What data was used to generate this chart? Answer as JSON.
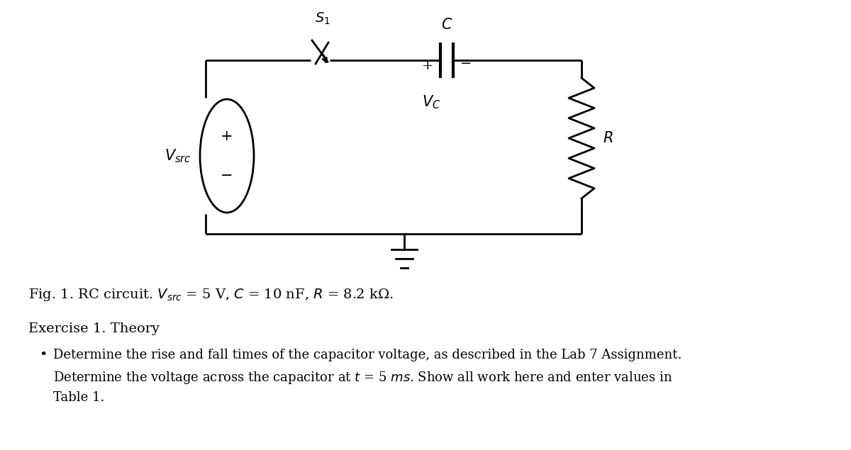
{
  "bg_color": "#ffffff",
  "fig_width": 12.0,
  "fig_height": 6.35,
  "dpi": 100,
  "lw": 2.0,
  "color": "#000000",
  "fig_caption": "Fig. 1. RC circuit. $V_{src}$ = 5 V, $C$ = 10 nF, $R$ = 8.2 kΩ.",
  "exercise_title": "Exercise 1. Theory",
  "bullet1_line1": "Determine the rise and fall times of the capacitor voltage, as described in the Lab 7 Assignment.",
  "bullet1_line2": "Determine the voltage across the capacitor at $t$ = 5 $ms$. Show all work here and enter values in",
  "bullet1_line3": "Table 1."
}
